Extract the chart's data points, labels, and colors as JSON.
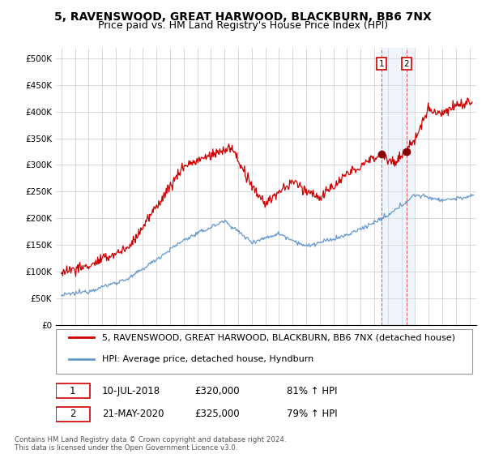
{
  "title": "5, RAVENSWOOD, GREAT HARWOOD, BLACKBURN, BB6 7NX",
  "subtitle": "Price paid vs. HM Land Registry's House Price Index (HPI)",
  "ytick_labels": [
    "£0",
    "£50K",
    "£100K",
    "£150K",
    "£200K",
    "£250K",
    "£300K",
    "£350K",
    "£400K",
    "£450K",
    "£500K"
  ],
  "yticks": [
    0,
    50000,
    100000,
    150000,
    200000,
    250000,
    300000,
    350000,
    400000,
    450000,
    500000
  ],
  "xlim_start": 1994.6,
  "xlim_end": 2025.5,
  "ylim_top": 520000,
  "ann1_x": 2018.52,
  "ann1_y": 320000,
  "ann2_x": 2020.38,
  "ann2_y": 325000,
  "ann1_label": "1",
  "ann2_label": "2",
  "ann1_date": "10-JUL-2018",
  "ann1_price": "£320,000",
  "ann1_hpi": "81% ↑ HPI",
  "ann2_date": "21-MAY-2020",
  "ann2_price": "£325,000",
  "ann2_hpi": "79% ↑ HPI",
  "legend_entry1": "5, RAVENSWOOD, GREAT HARWOOD, BLACKBURN, BB6 7NX (detached house)",
  "legend_entry2": "HPI: Average price, detached house, Hyndburn",
  "footer": "Contains HM Land Registry data © Crown copyright and database right 2024.\nThis data is licensed under the Open Government Licence v3.0.",
  "red_color": "#cc0000",
  "blue_color": "#6699cc",
  "shading_color": "#cce0f5",
  "grid_color": "#cccccc",
  "title_fontsize": 10,
  "subtitle_fontsize": 9,
  "axis_fontsize": 7.5,
  "legend_fontsize": 8,
  "table_fontsize": 8.5
}
